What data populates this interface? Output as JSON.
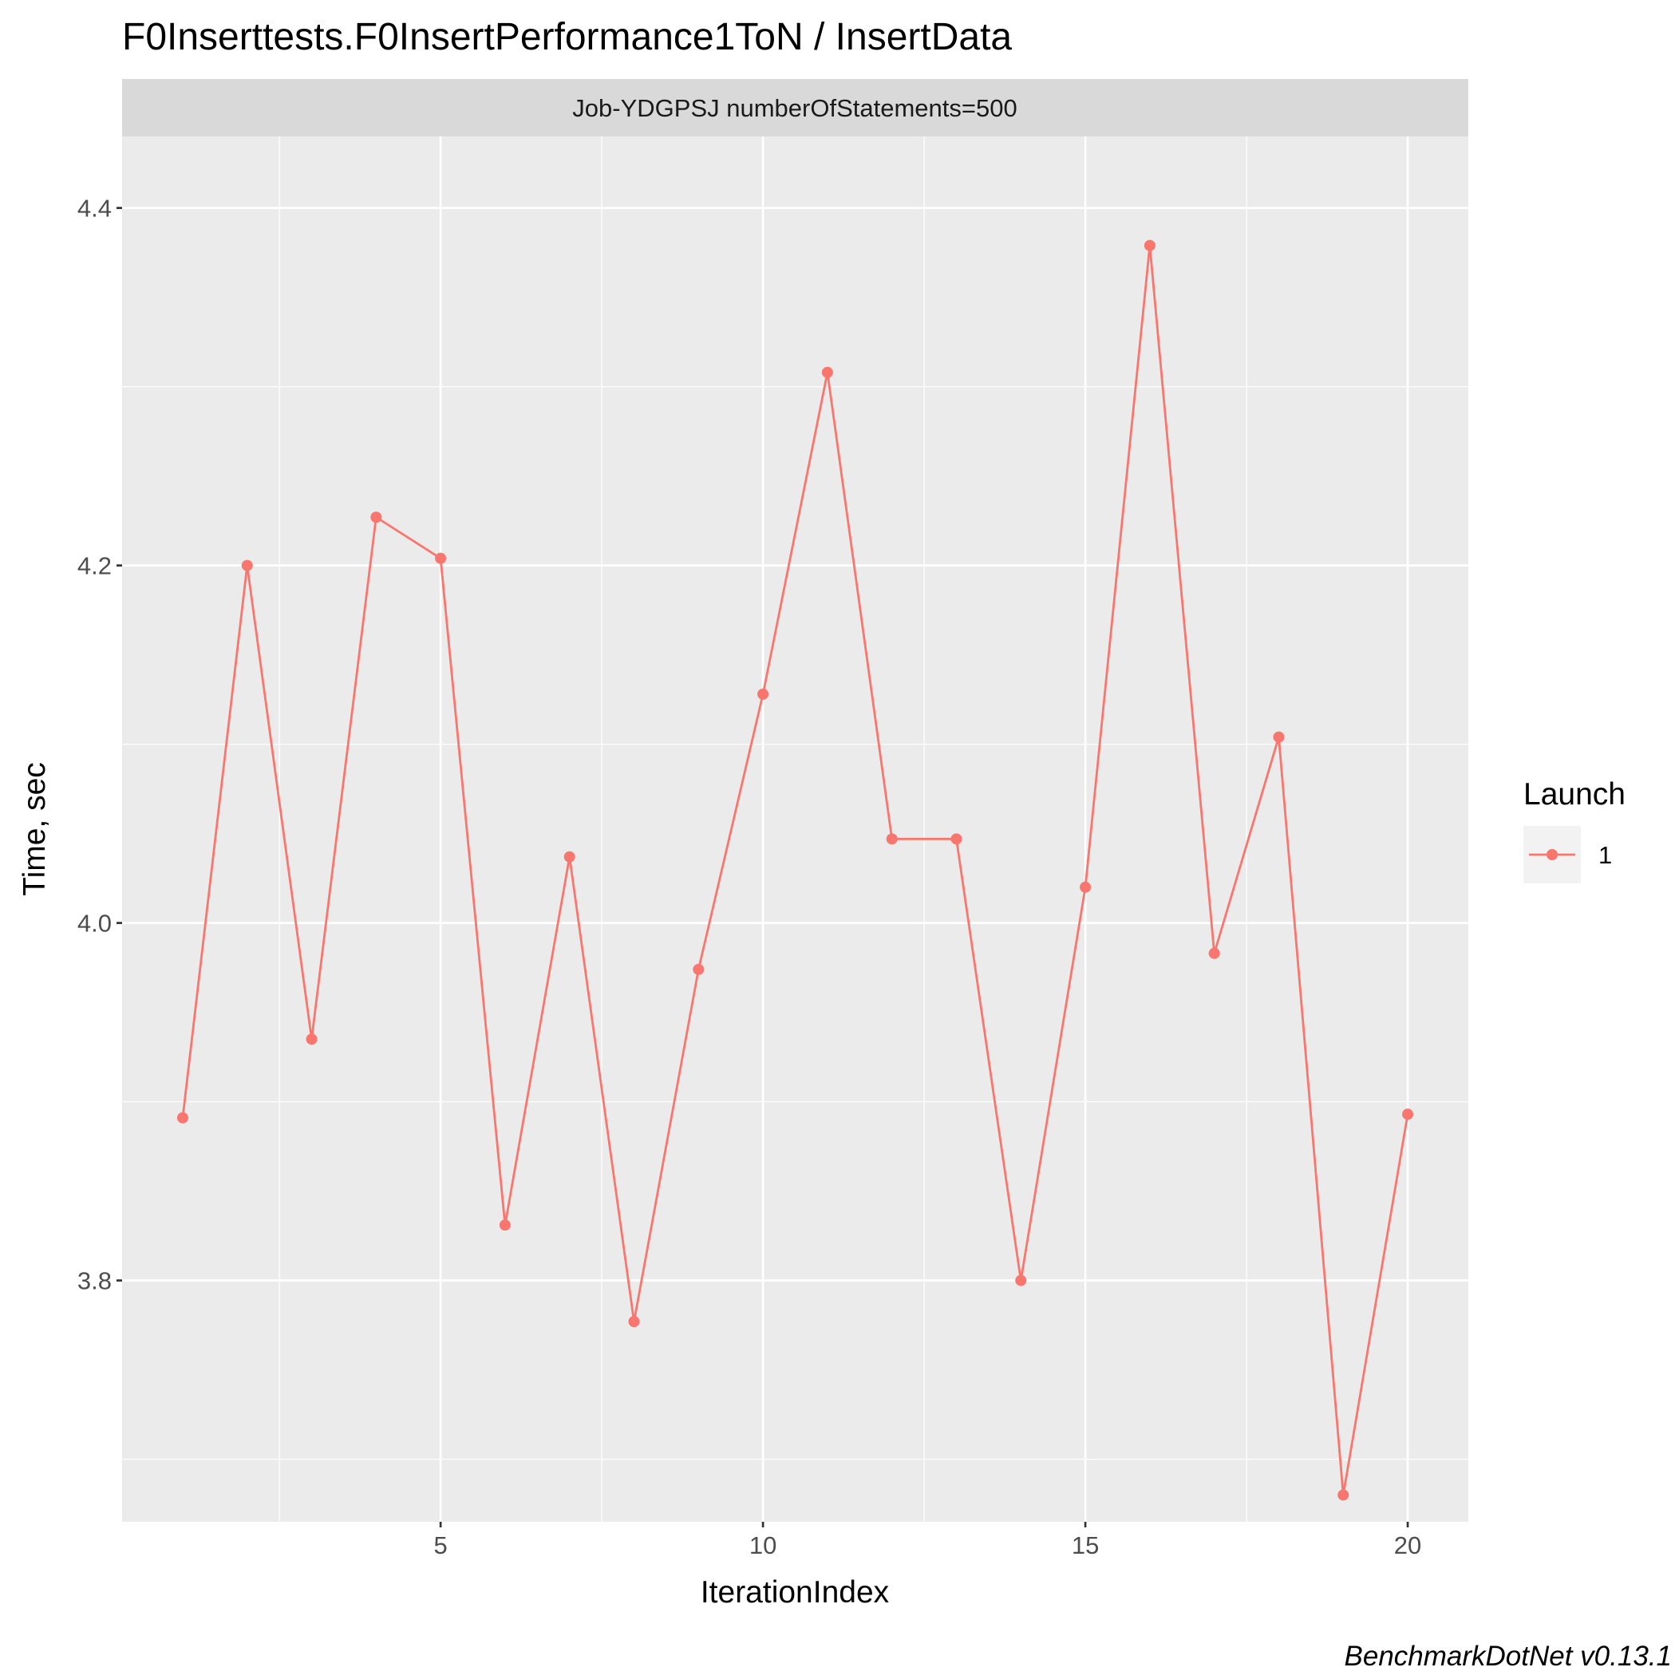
{
  "chart_data": {
    "type": "line",
    "title": "F0Inserttests.F0InsertPerformance1ToN / InsertData",
    "facet_label": "Job-YDGPSJ numberOfStatements=500",
    "xlabel": "IterationIndex",
    "ylabel": "Time, sec",
    "x": [
      1,
      2,
      3,
      4,
      5,
      6,
      7,
      8,
      9,
      10,
      11,
      12,
      13,
      14,
      15,
      16,
      17,
      18,
      19,
      20
    ],
    "series": [
      {
        "name": "1",
        "color": "#f8766d",
        "values": [
          3.891,
          4.2,
          3.935,
          4.227,
          4.204,
          3.831,
          4.037,
          3.777,
          3.974,
          4.128,
          4.308,
          4.047,
          4.047,
          3.8,
          4.02,
          4.379,
          3.983,
          4.104,
          3.68,
          3.893
        ]
      }
    ],
    "xlim": [
      0.06,
      20.94
    ],
    "ylim": [
      3.665,
      4.44
    ],
    "x_ticks": [
      5,
      10,
      15,
      20
    ],
    "x_tick_labels": [
      "5",
      "10",
      "15",
      "20"
    ],
    "x_minor": [
      2.5,
      7.5,
      12.5,
      17.5
    ],
    "y_ticks": [
      3.8,
      4.0,
      4.2,
      4.4
    ],
    "y_tick_labels": [
      "3.8",
      "4.0",
      "4.2",
      "4.4"
    ],
    "y_minor": [
      3.7,
      3.9,
      4.1,
      4.3
    ],
    "grid": true,
    "legend": {
      "title": "Launch",
      "position": "right"
    },
    "caption": "BenchmarkDotNet v0.13.1",
    "colors": {
      "panel": "#ebebeb",
      "strip": "#d9d9d9",
      "grid": "#ffffff"
    }
  }
}
